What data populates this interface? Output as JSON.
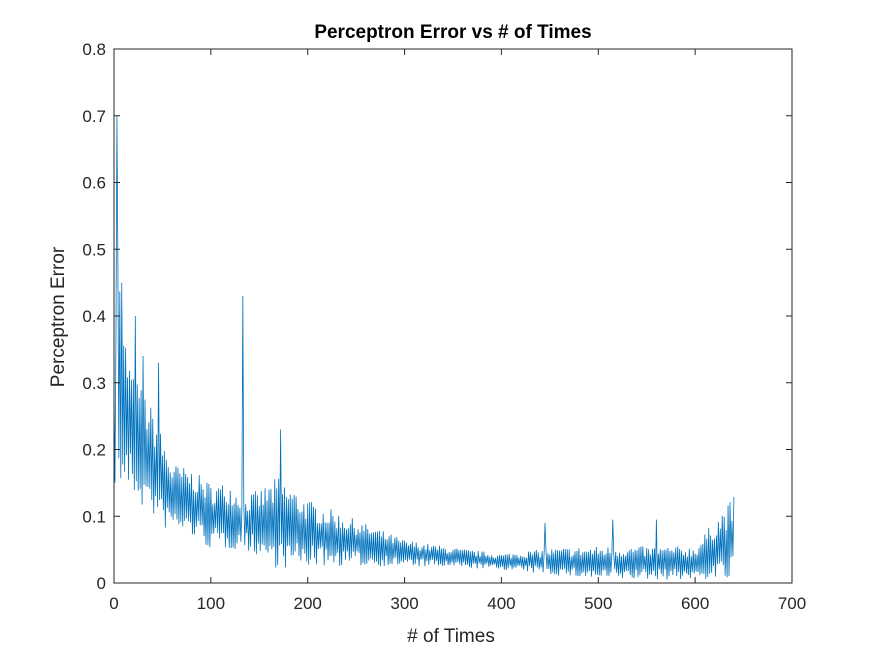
{
  "chart_data": {
    "type": "line",
    "title": "Perceptron Error vs # of Times",
    "xlabel": "# of Times",
    "ylabel": "Perceptron Error",
    "xlim": [
      0,
      700
    ],
    "ylim": [
      0,
      0.8
    ],
    "xticks": [
      0,
      100,
      200,
      300,
      400,
      500,
      600,
      700
    ],
    "yticks": [
      0,
      0.1,
      0.2,
      0.3,
      0.4,
      0.5,
      0.6,
      0.7,
      0.8
    ],
    "xtick_labels": [
      "0",
      "100",
      "200",
      "300",
      "400",
      "500",
      "600",
      "700"
    ],
    "ytick_labels": [
      "0",
      "0.1",
      "0.2",
      "0.3",
      "0.4",
      "0.5",
      "0.6",
      "0.7",
      "0.8"
    ],
    "grid": false,
    "box": true,
    "series": [
      {
        "color": "#0072BD",
        "envelope_x": [
          0,
          5,
          10,
          20,
          30,
          40,
          50,
          60,
          80,
          100,
          120,
          133,
          150,
          170,
          200,
          250,
          300,
          350,
          400,
          450,
          500,
          550,
          580,
          600,
          620,
          640
        ],
        "envelope_mean": [
          0.25,
          0.34,
          0.26,
          0.22,
          0.2,
          0.18,
          0.15,
          0.13,
          0.12,
          0.1,
          0.1,
          0.09,
          0.09,
          0.09,
          0.075,
          0.06,
          0.045,
          0.038,
          0.032,
          0.032,
          0.03,
          0.03,
          0.03,
          0.03,
          0.05,
          0.065
        ],
        "envelope_amp": [
          0.1,
          0.22,
          0.12,
          0.09,
          0.09,
          0.08,
          0.07,
          0.05,
          0.05,
          0.05,
          0.05,
          0.04,
          0.05,
          0.07,
          0.05,
          0.035,
          0.02,
          0.015,
          0.012,
          0.02,
          0.025,
          0.025,
          0.025,
          0.025,
          0.045,
          0.065
        ],
        "spikes": [
          {
            "x": 3,
            "y": 0.7
          },
          {
            "x": 8,
            "y": 0.45
          },
          {
            "x": 22,
            "y": 0.4
          },
          {
            "x": 30,
            "y": 0.34
          },
          {
            "x": 46,
            "y": 0.33
          },
          {
            "x": 133,
            "y": 0.43
          },
          {
            "x": 172,
            "y": 0.23
          },
          {
            "x": 445,
            "y": 0.09
          },
          {
            "x": 515,
            "y": 0.095
          },
          {
            "x": 560,
            "y": 0.095
          }
        ],
        "n_points": 640
      }
    ]
  }
}
